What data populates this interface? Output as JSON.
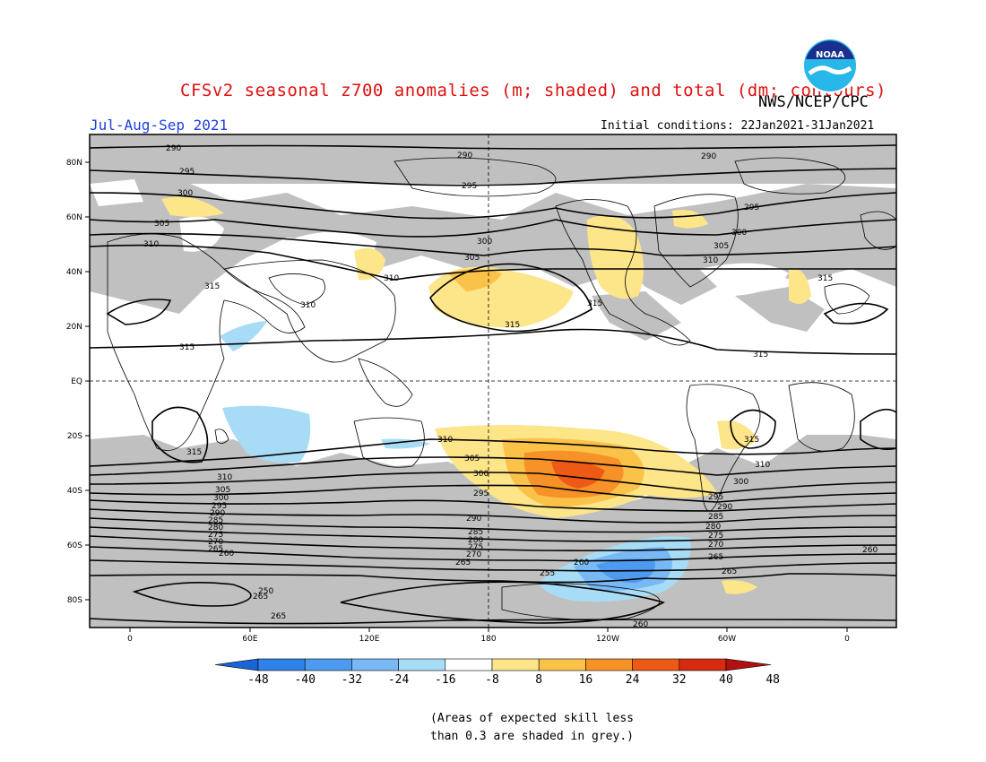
{
  "title": "CFSv2 seasonal z700 anomalies (m; shaded) and total (dm; contours)",
  "agency": "NWS/NCEP/CPC",
  "season": "Jul-Aug-Sep 2021",
  "initial_conditions": "Initial conditions: 22Jan2021-31Jan2021",
  "logo_text": "NOAA",
  "note_line1": "(Areas of expected skill less",
  "note_line2": "than 0.3 are shaded in grey.)",
  "lat_labels": [
    "80N",
    "60N",
    "40N",
    "20N",
    "EQ",
    "20S",
    "40S",
    "60S",
    "80S"
  ],
  "lon_labels": [
    "0",
    "60E",
    "120E",
    "180",
    "120W",
    "60W",
    "0"
  ],
  "colorbar": {
    "labels": [
      "-48",
      "-40",
      "-32",
      "-24",
      "-16",
      "-8",
      "8",
      "16",
      "24",
      "32",
      "40",
      "48"
    ],
    "colors": [
      "#1a64d8",
      "#2f82e8",
      "#4c9bf0",
      "#78b8f4",
      "#a8dcf6",
      "#ffffff",
      "#fde58a",
      "#fbc24a",
      "#f79228",
      "#ee5a16",
      "#d72b10",
      "#b01010"
    ]
  },
  "colors": {
    "skill_grey": "#c0c0c0",
    "title_red": "#e01010",
    "season_blue": "#1b3fe0"
  },
  "contour_labels": [
    "290",
    "295",
    "300",
    "305",
    "310",
    "315",
    "300",
    "305",
    "310",
    "315",
    "290",
    "295",
    "300",
    "305",
    "310",
    "315",
    "290",
    "295",
    "300",
    "305",
    "310",
    "315",
    "310",
    "305",
    "300",
    "295",
    "290",
    "285",
    "280",
    "275",
    "270",
    "265",
    "260",
    "255",
    "250",
    "265",
    "310",
    "305",
    "300",
    "295",
    "290",
    "285",
    "280",
    "275",
    "270",
    "265",
    "260",
    "310",
    "305",
    "300",
    "295",
    "290",
    "285",
    "280",
    "275",
    "270",
    "265",
    "260",
    "315",
    "310",
    "315",
    "310",
    "265",
    "260"
  ]
}
